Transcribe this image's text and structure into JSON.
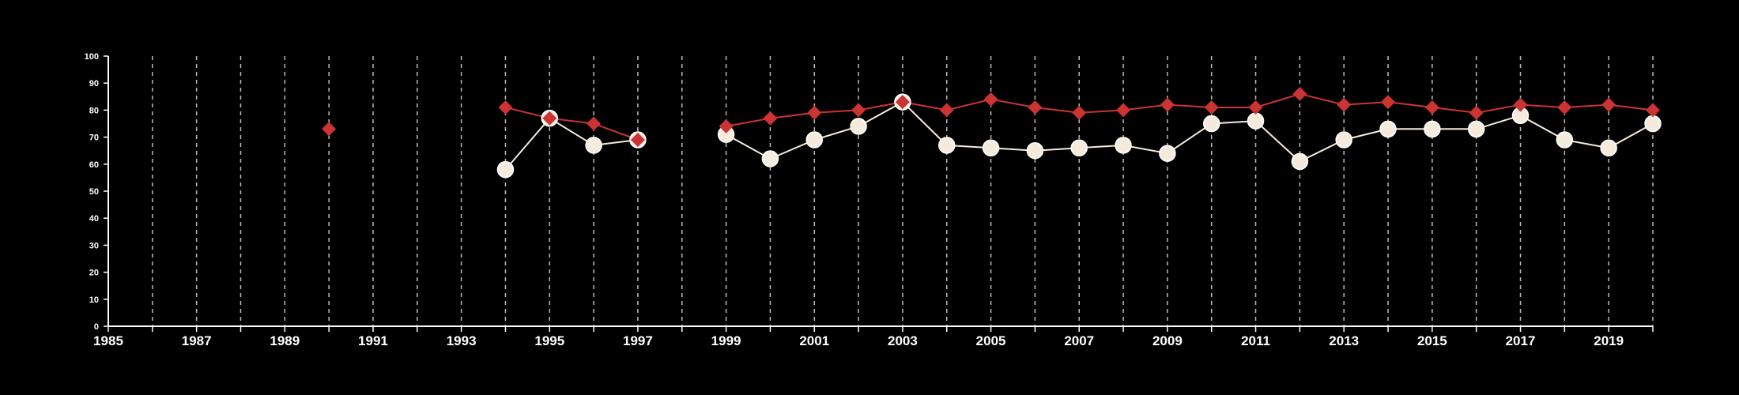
{
  "chart_data": {
    "type": "line",
    "title": "",
    "xlabel": "",
    "ylabel": "",
    "xlim": [
      1985,
      2020
    ],
    "ylim": [
      0,
      100
    ],
    "x_ticks": [
      "1985",
      "1987",
      "1989",
      "1991",
      "1993",
      "1995",
      "1997",
      "1999",
      "2001",
      "2003",
      "2005",
      "2007",
      "2009",
      "2011",
      "2013",
      "2015",
      "2017",
      "2019"
    ],
    "y_ticks": [
      "0",
      "10",
      "20",
      "30",
      "40",
      "50",
      "60",
      "70",
      "80",
      "90",
      "100"
    ],
    "grid": "vertical dashed lines at each year",
    "series": [
      {
        "marker": "diamond",
        "color": "#cc3333",
        "points": [
          [
            1990,
            73
          ],
          [
            1994,
            81
          ],
          [
            1995,
            77
          ],
          [
            1996,
            75
          ],
          [
            1997,
            69
          ],
          [
            1999,
            74
          ],
          [
            2000,
            77
          ],
          [
            2001,
            79
          ],
          [
            2002,
            80
          ],
          [
            2003,
            83
          ],
          [
            2004,
            80
          ],
          [
            2005,
            84
          ],
          [
            2006,
            81
          ],
          [
            2007,
            79
          ],
          [
            2008,
            80
          ],
          [
            2009,
            82
          ],
          [
            2010,
            81
          ],
          [
            2011,
            81
          ],
          [
            2012,
            86
          ],
          [
            2013,
            82
          ],
          [
            2014,
            83
          ],
          [
            2015,
            81
          ],
          [
            2016,
            79
          ],
          [
            2017,
            82
          ],
          [
            2018,
            81
          ],
          [
            2019,
            82
          ],
          [
            2020,
            80
          ]
        ]
      },
      {
        "marker": "circle",
        "color": "#f5ebdc",
        "points": [
          [
            1994,
            58
          ],
          [
            1995,
            77
          ],
          [
            1996,
            67
          ],
          [
            1997,
            69
          ],
          [
            1999,
            71
          ],
          [
            2000,
            62
          ],
          [
            2001,
            69
          ],
          [
            2002,
            74
          ],
          [
            2003,
            83
          ],
          [
            2004,
            67
          ],
          [
            2005,
            66
          ],
          [
            2006,
            65
          ],
          [
            2007,
            66
          ],
          [
            2008,
            67
          ],
          [
            2009,
            64
          ],
          [
            2010,
            75
          ],
          [
            2011,
            76
          ],
          [
            2012,
            61
          ],
          [
            2013,
            69
          ],
          [
            2014,
            73
          ],
          [
            2015,
            73
          ],
          [
            2016,
            73
          ],
          [
            2017,
            78
          ],
          [
            2018,
            69
          ],
          [
            2019,
            66
          ],
          [
            2020,
            75
          ]
        ]
      }
    ]
  }
}
